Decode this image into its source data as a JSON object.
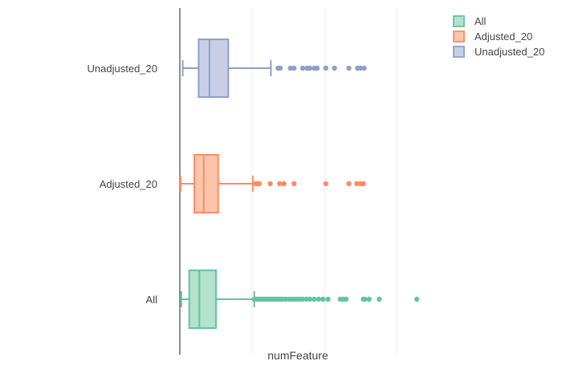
{
  "chart_data": {
    "type": "box",
    "orientation": "horizontal",
    "xlabel": "numFeature",
    "ylabel": "",
    "xlim": [
      0,
      5300
    ],
    "x_gridlines": [
      1000,
      2000,
      3000
    ],
    "show_x_tick_labels": false,
    "legend_placement": "top-right",
    "categories": [
      "All",
      "Adjusted_20",
      "Unadjusted_20"
    ],
    "series": [
      {
        "name": "All",
        "color": "#66c2a5",
        "fill": "#b3e2cd",
        "min": 20,
        "q1": 130,
        "median": 270,
        "q3": 500,
        "max": 1030,
        "outliers": [
          1030,
          1060,
          1090,
          1120,
          1150,
          1180,
          1210,
          1240,
          1270,
          1300,
          1330,
          1360,
          1390,
          1420,
          1460,
          1500,
          1540,
          1580,
          1620,
          1660,
          1700,
          1750,
          1800,
          1860,
          1920,
          1980,
          2050,
          2220,
          2260,
          2300,
          2540,
          2560,
          2620,
          2760,
          3280
        ]
      },
      {
        "name": "Adjusted_20",
        "color": "#fc8d62",
        "fill": "#fdc5ac",
        "min": 10,
        "q1": 200,
        "median": 330,
        "q3": 530,
        "max": 1010,
        "outliers": [
          1050,
          1080,
          1100,
          1250,
          1380,
          1440,
          1580,
          2020,
          2340,
          2450,
          2500,
          2540
        ]
      },
      {
        "name": "Unadjusted_20",
        "color": "#8da0cb",
        "fill": "#c6cfe6",
        "min": 40,
        "q1": 260,
        "median": 410,
        "q3": 670,
        "max": 1260,
        "outliers": [
          1360,
          1390,
          1530,
          1580,
          1700,
          1760,
          1800,
          1860,
          1900,
          2020,
          2140,
          2340,
          2460,
          2500,
          2550
        ]
      }
    ]
  }
}
